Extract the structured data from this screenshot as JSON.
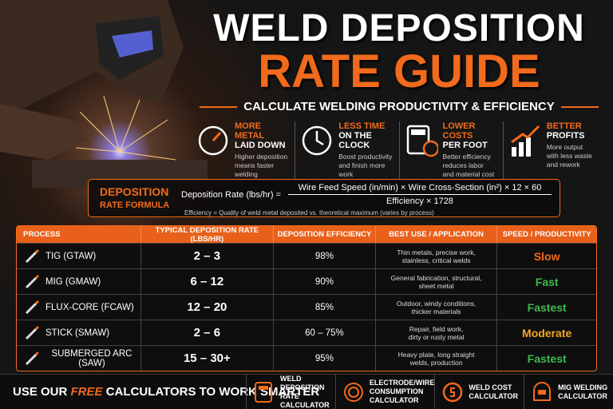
{
  "header": {
    "title_line1": "WELD DEPOSITION",
    "title_line2": "RATE GUIDE",
    "subtitle": "CALCULATE WELDING PRODUCTIVITY & EFFICIENCY"
  },
  "benefits": [
    {
      "title": "MORE METAL",
      "subtitle": "LAID DOWN",
      "description": [
        "Higher deposition",
        "means faster",
        "welding"
      ]
    },
    {
      "title": "LESS TIME",
      "subtitle": "ON THE CLOCK",
      "description": [
        "Boost productivity",
        "and finish more",
        "work"
      ]
    },
    {
      "title": "LOWER COSTS",
      "subtitle": "PER FOOT",
      "description": [
        "Better efficiency",
        "reduces labor",
        "and material cost"
      ]
    },
    {
      "title": "BETTER",
      "subtitle": "PROFITS",
      "description": [
        "More output",
        "with less waste",
        "and rework"
      ]
    }
  ],
  "formula": {
    "label_line1": "DEPOSITION",
    "label_line2": "RATE FORMULA",
    "lhs": "Deposition Rate (lbs/hr) =",
    "numerator": "Wire Feed Speed (in/min) × Wire Cross-Section (in²) × 12 × 60",
    "denominator": "Efficiency × 1728",
    "note": "Efficiency = Quality of weld metal deposited vs. theoretical maximum (varies by process)"
  },
  "table": {
    "headers": [
      "PROCESS",
      "TYPICAL DEPOSITION RATE (LBS/HR)",
      "DEPOSITION EFFICIENCY",
      "BEST USE / APPLICATION",
      "SPEED / PRODUCTIVITY"
    ],
    "rows": [
      {
        "process": "TIG (GTAW)",
        "rate": "2 – 3",
        "efficiency": "98%",
        "best_use": [
          "Thin metals, precise work,",
          "stainless, critical welds"
        ],
        "speed": "Slow",
        "speed_color": "#f26a1b"
      },
      {
        "process": "MIG (GMAW)",
        "rate": "6 – 12",
        "efficiency": "90%",
        "best_use": [
          "General fabrication, structural,",
          "sheet metal"
        ],
        "speed": "Fast",
        "speed_color": "#3dba4e"
      },
      {
        "process": "FLUX-CORE (FCAW)",
        "rate": "12 – 20",
        "efficiency": "85%",
        "best_use": [
          "Outdoor, windy conditions,",
          "thicker materials"
        ],
        "speed": "Fastest",
        "speed_color": "#3dba4e"
      },
      {
        "process": "STICK (SMAW)",
        "rate": "2 – 6",
        "efficiency": "60 – 75%",
        "best_use": [
          "Repair, field work,",
          "dirty or rusty metal"
        ],
        "speed": "Moderate",
        "speed_color": "#f5a623"
      },
      {
        "process": "SUBMERGED ARC (SAW)",
        "rate": "15 – 30+",
        "efficiency": "95%",
        "best_use": [
          "Heavy plate, long straight",
          "welds, production"
        ],
        "speed": "Fastest",
        "speed_color": "#3dba4e"
      }
    ]
  },
  "footer": {
    "cta_start": "USE OUR ",
    "cta_highlight": "FREE",
    "cta_end": " CALCULATORS TO WORK SMARTER",
    "links": [
      {
        "label": [
          "WELD DEPOSITION",
          "RATE CALCULATOR"
        ]
      },
      {
        "label": [
          "ELECTRODE/WIRE",
          "CONSUMPTION",
          "CALCULATOR"
        ]
      },
      {
        "label": [
          "WELD COST",
          "CALCULATOR"
        ]
      },
      {
        "label": [
          "MIG WELDING",
          "CALCULATOR"
        ]
      }
    ]
  }
}
